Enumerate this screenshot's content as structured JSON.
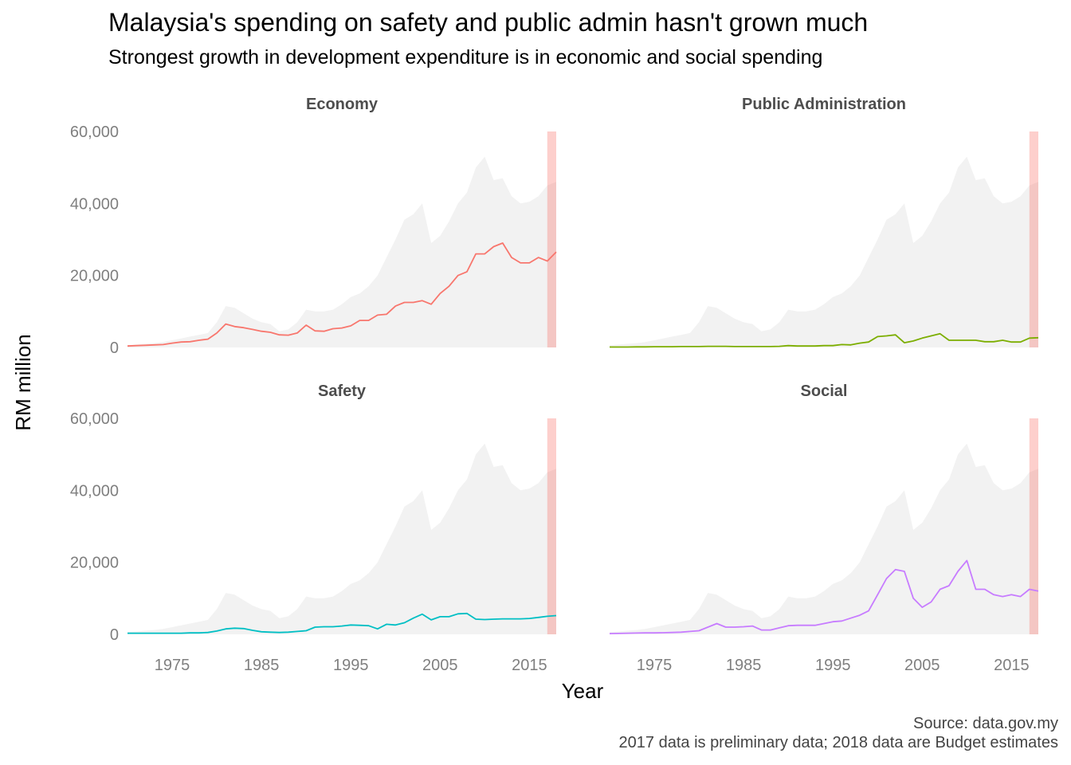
{
  "title": "Malaysia's spending on safety and public admin hasn't grown much",
  "subtitle": "Strongest growth in development expenditure is in economic and social spending",
  "caption": {
    "source": "Source: data.gov.my",
    "note": "2017 data is preliminary data; 2018 data are Budget estimates"
  },
  "chart_data": {
    "type": "line",
    "xlabel": "Year",
    "ylabel": "RM million",
    "xlim": [
      1970,
      2018
    ],
    "ylim": [
      0,
      60000
    ],
    "x_ticks": [
      1975,
      1985,
      1995,
      2005,
      2015
    ],
    "y_ticks": [
      0,
      20000,
      40000,
      60000
    ],
    "y_tick_labels": [
      "0",
      "20,000",
      "40,000",
      "60,000"
    ],
    "grid": false,
    "legend": "none",
    "highlight_years": [
      2017,
      2018
    ],
    "highlight_color": "#f8766d",
    "total_area_color": "#f2f2f2",
    "years": [
      1970,
      1971,
      1972,
      1973,
      1974,
      1975,
      1976,
      1977,
      1978,
      1979,
      1980,
      1981,
      1982,
      1983,
      1984,
      1985,
      1986,
      1987,
      1988,
      1989,
      1990,
      1991,
      1992,
      1993,
      1994,
      1995,
      1996,
      1997,
      1998,
      1999,
      2000,
      2001,
      2002,
      2003,
      2004,
      2005,
      2006,
      2007,
      2008,
      2009,
      2010,
      2011,
      2012,
      2013,
      2014,
      2015,
      2016,
      2017,
      2018
    ],
    "total": [
      600,
      800,
      1000,
      1200,
      1500,
      2000,
      2500,
      3000,
      3500,
      4000,
      7000,
      11500,
      11000,
      9500,
      8000,
      7000,
      6500,
      4500,
      5000,
      7000,
      10500,
      10000,
      10000,
      10500,
      12000,
      14000,
      15000,
      17000,
      20000,
      25000,
      30000,
      35500,
      37000,
      40000,
      29000,
      31000,
      35000,
      40000,
      43000,
      50000,
      53000,
      46500,
      47000,
      42000,
      40000,
      40500,
      42000,
      45000,
      46000
    ],
    "facets": [
      {
        "name": "Economy",
        "color": "#f8766d",
        "values": [
          400,
          500,
          600,
          700,
          800,
          1200,
          1500,
          1600,
          2000,
          2300,
          4000,
          6500,
          5800,
          5500,
          5000,
          4500,
          4200,
          3500,
          3400,
          4000,
          6200,
          4600,
          4500,
          5200,
          5400,
          6000,
          7500,
          7500,
          9000,
          9200,
          11500,
          12500,
          12500,
          13000,
          12000,
          15000,
          17000,
          20000,
          21000,
          26000,
          26000,
          28000,
          29000,
          25000,
          23500,
          23500,
          25000,
          24000,
          26500
        ]
      },
      {
        "name": "Public Administration",
        "color": "#7cae00",
        "values": [
          100,
          100,
          120,
          150,
          150,
          200,
          200,
          200,
          250,
          250,
          250,
          300,
          300,
          300,
          250,
          250,
          250,
          250,
          250,
          300,
          500,
          400,
          400,
          400,
          500,
          500,
          800,
          700,
          1200,
          1500,
          3000,
          3200,
          3500,
          1300,
          1800,
          2600,
          3200,
          3800,
          2000,
          2000,
          2000,
          2000,
          1600,
          1600,
          2000,
          1500,
          1500,
          2600,
          2700
        ]
      },
      {
        "name": "Safety",
        "color": "#00bfc4",
        "values": [
          300,
          300,
          300,
          300,
          300,
          300,
          300,
          400,
          400,
          500,
          900,
          1500,
          1700,
          1600,
          1100,
          700,
          600,
          500,
          600,
          800,
          1000,
          2000,
          2100,
          2100,
          2300,
          2600,
          2500,
          2400,
          1500,
          2800,
          2600,
          3200,
          4500,
          5600,
          4000,
          4900,
          4900,
          5700,
          5800,
          4200,
          4100,
          4200,
          4300,
          4300,
          4300,
          4400,
          4700,
          5000,
          5200
        ]
      },
      {
        "name": "Social",
        "color": "#c77cff",
        "values": [
          200,
          250,
          300,
          350,
          400,
          400,
          450,
          500,
          600,
          800,
          1000,
          2000,
          3000,
          2000,
          2000,
          2100,
          2300,
          1200,
          1200,
          1800,
          2400,
          2500,
          2500,
          2500,
          3000,
          3500,
          3700,
          4500,
          5300,
          6500,
          11000,
          15500,
          18000,
          17500,
          10000,
          7500,
          9000,
          12500,
          13500,
          17500,
          20500,
          12500,
          12500,
          11000,
          10500,
          11000,
          10500,
          12500,
          12000
        ]
      }
    ]
  }
}
